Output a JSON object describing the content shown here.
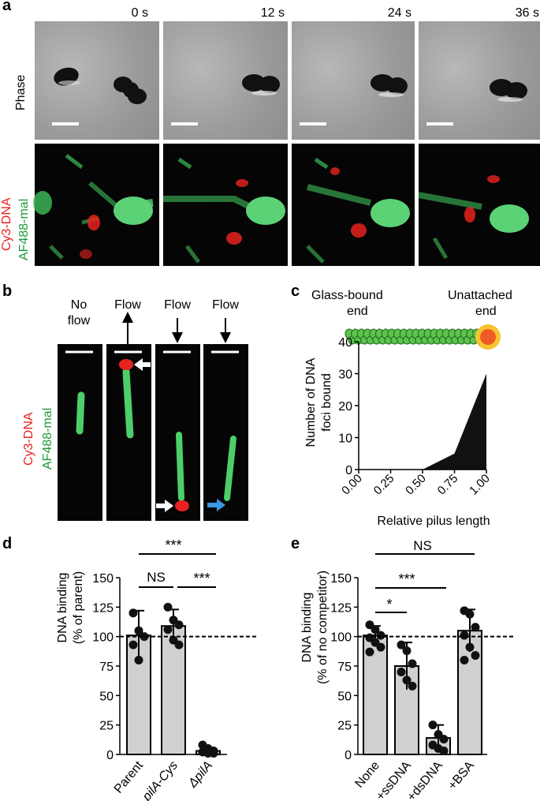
{
  "panel_a": {
    "label": "a",
    "times": [
      "0 s",
      "12 s",
      "24 s",
      "36 s"
    ],
    "row_labels": {
      "phase": "Phase",
      "red": "Cy3-DNA",
      "green": "AF488-mal"
    }
  },
  "panel_b": {
    "label": "b",
    "columns": [
      {
        "l1": "No",
        "l2": "flow"
      },
      {
        "l1": "Flow",
        "l2": ""
      },
      {
        "l1": "Flow",
        "l2": ""
      },
      {
        "l1": "Flow",
        "l2": ""
      }
    ],
    "row_labels": {
      "red": "Cy3-DNA",
      "green": "AF488-mal"
    }
  },
  "panel_c": {
    "label": "c",
    "glass_label_1": "Glass-bound",
    "glass_label_2": "end",
    "unattached_label_1": "Unattached",
    "unattached_label_2": "end",
    "ylabel_1": "Number of DNA",
    "ylabel_2": "foci bound",
    "xlabel": "Relative pilus length",
    "yticks": [
      "0",
      "10",
      "20",
      "30",
      "40"
    ],
    "xticks": [
      "0.00",
      "0.25",
      "0.50",
      "0.75",
      "1.00"
    ]
  },
  "panel_d": {
    "label": "d",
    "ylabel_1": "DNA binding",
    "ylabel_2": "(% of parent)",
    "yticks": [
      "0",
      "25",
      "50",
      "75",
      "100",
      "125",
      "150"
    ],
    "categories": [
      "Parent",
      "pilA-Cys",
      "ΔpilA"
    ],
    "sig_top": "***",
    "sig_left": "NS",
    "sig_right": "***"
  },
  "panel_e": {
    "label": "e",
    "ylabel_1": "DNA binding",
    "ylabel_2": "(% of no competitor)",
    "yticks": [
      "0",
      "25",
      "50",
      "75",
      "100",
      "125",
      "150"
    ],
    "categories": [
      "None",
      "+ssDNA",
      "+dsDNA",
      "+BSA"
    ],
    "sig_top": "NS",
    "sig_mid": "***",
    "sig_low": "*"
  },
  "chart_data": [
    {
      "type": "area",
      "x": [
        0.0,
        0.25,
        0.5,
        0.75,
        1.0
      ],
      "values": [
        0,
        0,
        0,
        5,
        30
      ],
      "xlabel": "Relative pilus length",
      "ylabel": "Number of DNA foci bound",
      "xlim": [
        0,
        1
      ],
      "ylim": [
        0,
        40
      ]
    },
    {
      "type": "bar",
      "categories": [
        "Parent",
        "pilA-Cys",
        "ΔpilA"
      ],
      "values": [
        101,
        109,
        3
      ],
      "errors": [
        21,
        14,
        2
      ],
      "points": [
        [
          120,
          105,
          100,
          93,
          80
        ],
        [
          125,
          114,
          110,
          106,
          97,
          93
        ],
        [
          8,
          5,
          3,
          2,
          1,
          1
        ]
      ],
      "reference_line": 100,
      "ylabel": "DNA binding (% of parent)",
      "ylim": [
        0,
        150
      ]
    },
    {
      "type": "bar",
      "categories": [
        "None",
        "+ssDNA",
        "+dsDNA",
        "+BSA"
      ],
      "values": [
        101,
        75,
        14,
        105
      ],
      "errors": [
        8,
        20,
        11,
        18
      ],
      "points": [
        [
          110,
          106,
          101,
          99,
          95,
          91,
          87
        ],
        [
          93,
          88,
          77,
          70,
          63,
          58
        ],
        [
          25,
          17,
          13,
          8,
          5,
          3
        ],
        [
          122,
          119,
          108,
          101,
          91,
          84,
          80
        ]
      ],
      "reference_line": 100,
      "ylabel": "DNA binding (% of no competitor)",
      "ylim": [
        0,
        150
      ]
    }
  ]
}
